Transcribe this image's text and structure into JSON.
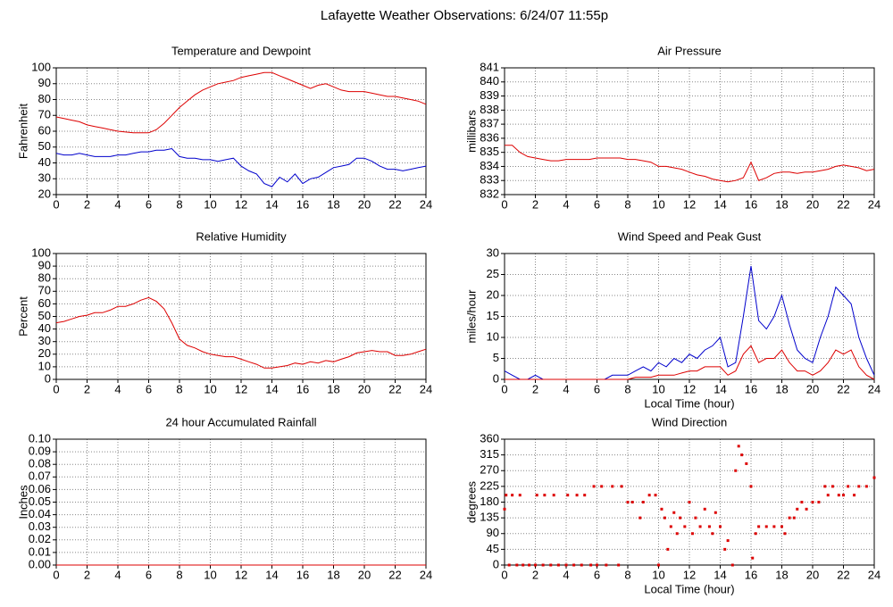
{
  "title": "Lafayette Weather Observations: 6/24/07 11:55p",
  "chart_data": [
    {
      "type": "line",
      "title": "Temperature and Dewpoint",
      "ylabel": "Fahrenheit",
      "x": [
        0,
        0.5,
        1,
        1.5,
        2,
        2.5,
        3,
        3.5,
        4,
        4.5,
        5,
        5.5,
        6,
        6.5,
        7,
        7.5,
        8,
        8.5,
        9,
        9.5,
        10,
        10.5,
        11,
        11.5,
        12,
        12.5,
        13,
        13.5,
        14,
        14.5,
        15,
        15.5,
        16,
        16.5,
        17,
        17.5,
        18,
        18.5,
        19,
        19.5,
        20,
        20.5,
        21,
        21.5,
        22,
        22.5,
        23,
        23.5,
        24
      ],
      "series": [
        {
          "color": "#dd0000",
          "values": [
            69,
            68,
            67,
            66,
            64,
            63,
            62,
            61,
            60,
            59.5,
            59,
            59,
            59,
            61,
            65,
            70,
            75,
            79,
            83,
            86,
            88,
            90,
            91,
            92,
            94,
            95,
            96,
            97,
            97,
            95,
            93,
            91,
            89,
            87,
            89,
            90,
            88,
            86,
            85,
            85,
            85,
            84,
            83,
            82,
            82,
            81,
            80,
            79,
            77
          ]
        },
        {
          "color": "#0000cc",
          "values": [
            46,
            45,
            45,
            46,
            45,
            44,
            44,
            44,
            45,
            45,
            46,
            47,
            47,
            48,
            48,
            49,
            44,
            43,
            43,
            42,
            42,
            41,
            42,
            43,
            38,
            35,
            33,
            27,
            25,
            31,
            28,
            33,
            27,
            30,
            31,
            34,
            37,
            38,
            39,
            43,
            43,
            41,
            38,
            36,
            36,
            35,
            36,
            37,
            38
          ]
        }
      ],
      "xlim": [
        0,
        24
      ],
      "xticks": [
        0,
        2,
        4,
        6,
        8,
        10,
        12,
        14,
        16,
        18,
        20,
        22,
        24
      ],
      "ylim": [
        20,
        100
      ],
      "yticks": [
        20,
        30,
        40,
        50,
        60,
        70,
        80,
        90,
        100
      ],
      "grid": true
    },
    {
      "type": "line",
      "title": "Air Pressure",
      "ylabel": "millibars",
      "x": [
        0,
        0.5,
        1,
        1.5,
        2,
        2.5,
        3,
        3.5,
        4,
        4.5,
        5,
        5.5,
        6,
        6.5,
        7,
        7.5,
        8,
        8.5,
        9,
        9.5,
        10,
        10.5,
        11,
        11.5,
        12,
        12.5,
        13,
        13.5,
        14,
        14.5,
        15,
        15.5,
        16,
        16.5,
        17,
        17.5,
        18,
        18.5,
        19,
        19.5,
        20,
        20.5,
        21,
        21.5,
        22,
        22.5,
        23,
        23.5,
        24
      ],
      "series": [
        {
          "color": "#dd0000",
          "values": [
            835.5,
            835.5,
            835.0,
            834.7,
            834.6,
            834.5,
            834.4,
            834.4,
            834.5,
            834.5,
            834.5,
            834.5,
            834.6,
            834.6,
            834.6,
            834.6,
            834.5,
            834.5,
            834.4,
            834.3,
            834.0,
            834.0,
            833.9,
            833.8,
            833.6,
            833.4,
            833.3,
            833.1,
            833.0,
            832.9,
            833.0,
            833.2,
            834.3,
            833.0,
            833.2,
            833.5,
            833.6,
            833.6,
            833.5,
            833.6,
            833.6,
            833.7,
            833.8,
            834.0,
            834.1,
            834.0,
            833.9,
            833.7,
            833.8
          ]
        }
      ],
      "xlim": [
        0,
        24
      ],
      "xticks": [
        0,
        2,
        4,
        6,
        8,
        10,
        12,
        14,
        16,
        18,
        20,
        22,
        24
      ],
      "ylim": [
        832,
        841
      ],
      "yticks": [
        832,
        833,
        834,
        835,
        836,
        837,
        838,
        839,
        840,
        841
      ],
      "grid": true
    },
    {
      "type": "line",
      "title": "Relative Humidity",
      "ylabel": "Percent",
      "x": [
        0,
        0.5,
        1,
        1.5,
        2,
        2.5,
        3,
        3.5,
        4,
        4.5,
        5,
        5.5,
        6,
        6.5,
        7,
        7.5,
        8,
        8.5,
        9,
        9.5,
        10,
        10.5,
        11,
        11.5,
        12,
        12.5,
        13,
        13.5,
        14,
        14.5,
        15,
        15.5,
        16,
        16.5,
        17,
        17.5,
        18,
        18.5,
        19,
        19.5,
        20,
        20.5,
        21,
        21.5,
        22,
        22.5,
        23,
        23.5,
        24
      ],
      "series": [
        {
          "color": "#dd0000",
          "values": [
            45,
            46,
            48,
            50,
            51,
            53,
            53,
            55,
            58,
            58,
            60,
            63,
            65,
            62,
            56,
            45,
            32,
            27,
            25,
            22,
            20,
            19,
            18,
            18,
            16,
            14,
            12,
            9,
            9,
            10,
            11,
            13,
            12,
            14,
            13,
            15,
            14,
            16,
            18,
            21,
            22,
            23,
            22,
            22,
            19,
            19,
            20,
            22,
            24
          ]
        }
      ],
      "xlim": [
        0,
        24
      ],
      "xticks": [
        0,
        2,
        4,
        6,
        8,
        10,
        12,
        14,
        16,
        18,
        20,
        22,
        24
      ],
      "ylim": [
        0,
        100
      ],
      "yticks": [
        0,
        10,
        20,
        30,
        40,
        50,
        60,
        70,
        80,
        90,
        100
      ],
      "grid": true
    },
    {
      "type": "line",
      "title": "Wind Speed and Peak Gust",
      "ylabel": "miles/hour",
      "xlabel": "Local Time (hour)",
      "x": [
        0,
        0.5,
        1,
        1.5,
        2,
        2.5,
        3,
        3.5,
        4,
        4.5,
        5,
        5.5,
        6,
        6.5,
        7,
        7.5,
        8,
        8.5,
        9,
        9.5,
        10,
        10.5,
        11,
        11.5,
        12,
        12.5,
        13,
        13.5,
        14,
        14.5,
        15,
        15.5,
        16,
        16.5,
        17,
        17.5,
        18,
        18.5,
        19,
        19.5,
        20,
        20.5,
        21,
        21.5,
        22,
        22.5,
        23,
        23.5,
        24
      ],
      "series": [
        {
          "color": "#0000cc",
          "values": [
            2,
            1,
            0,
            0,
            1,
            0,
            0,
            0,
            0,
            0,
            0,
            0,
            0,
            0,
            1,
            1,
            1,
            2,
            3,
            2,
            4,
            3,
            5,
            4,
            6,
            5,
            7,
            8,
            10,
            3,
            4,
            15,
            27,
            14,
            12,
            15,
            20,
            13,
            7,
            5,
            4,
            10,
            15,
            22,
            20,
            18,
            10,
            5,
            1
          ]
        },
        {
          "color": "#dd0000",
          "values": [
            0,
            0,
            0,
            0,
            0,
            0,
            0,
            0,
            0,
            0,
            0,
            0,
            0,
            0,
            0,
            0,
            0,
            0.5,
            0.5,
            0.5,
            1,
            1,
            1,
            1.5,
            2,
            2,
            3,
            3,
            3,
            1,
            2,
            6,
            8,
            4,
            5,
            5,
            7,
            4,
            2,
            2,
            1,
            2,
            4,
            7,
            6,
            7,
            3,
            1,
            0
          ]
        }
      ],
      "xlim": [
        0,
        24
      ],
      "xticks": [
        0,
        2,
        4,
        6,
        8,
        10,
        12,
        14,
        16,
        18,
        20,
        22,
        24
      ],
      "ylim": [
        0,
        30
      ],
      "yticks": [
        0,
        5,
        10,
        15,
        20,
        25,
        30
      ],
      "grid": true
    },
    {
      "type": "line",
      "title": "24 hour Accumulated Rainfall",
      "ylabel": "Inches",
      "x": [
        0,
        24
      ],
      "series": [
        {
          "color": "#dd0000",
          "values": [
            0,
            0
          ]
        }
      ],
      "xlim": [
        0,
        24
      ],
      "xticks": [
        0,
        2,
        4,
        6,
        8,
        10,
        12,
        14,
        16,
        18,
        20,
        22,
        24
      ],
      "ylim": [
        0,
        0.1
      ],
      "yticks": [
        {
          "value": 0,
          "label": "0.00"
        },
        {
          "value": 0.01,
          "label": "0.01"
        },
        {
          "value": 0.02,
          "label": "0.02"
        },
        {
          "value": 0.03,
          "label": "0.03"
        },
        {
          "value": 0.04,
          "label": "0.04"
        },
        {
          "value": 0.05,
          "label": "0.05"
        },
        {
          "value": 0.06,
          "label": "0.06"
        },
        {
          "value": 0.07,
          "label": "0.07"
        },
        {
          "value": 0.08,
          "label": "0.08"
        },
        {
          "value": 0.09,
          "label": "0.09"
        },
        {
          "value": 0.1,
          "label": "0.10"
        }
      ],
      "grid": true
    },
    {
      "type": "scatter",
      "title": "Wind Direction",
      "ylabel": "degrees",
      "xlabel": "Local Time (hour)",
      "x": [
        0,
        0.1,
        0.5,
        1,
        0.3,
        0.8,
        1.2,
        1.6,
        2,
        2.1,
        2.5,
        2.6,
        3,
        3.2,
        3.5,
        4,
        4.1,
        4.5,
        4.7,
        5,
        5.2,
        5.6,
        5.8,
        6,
        6.3,
        6.6,
        7,
        7.4,
        7.6,
        8,
        8.3,
        8.8,
        9,
        9.4,
        9.8,
        10,
        10.2,
        10.4,
        10.6,
        10.8,
        11,
        11.2,
        11.4,
        11.7,
        12,
        12.2,
        12.4,
        12.7,
        13,
        13.3,
        13.5,
        13.7,
        14,
        14.3,
        14.5,
        14.8,
        15,
        15.2,
        15.4,
        15.7,
        16,
        16.1,
        16.3,
        16.5,
        17,
        17.5,
        18,
        18.2,
        18.5,
        18.8,
        19,
        19.3,
        19.6,
        20,
        20.4,
        20.8,
        21,
        21.3,
        21.7,
        22,
        22.3,
        22.7,
        23,
        23.5,
        24
      ],
      "series": [
        {
          "color": "#dd0000",
          "values": [
            160,
            200,
            200,
            200,
            0,
            0,
            0,
            0,
            0,
            200,
            0,
            200,
            0,
            200,
            0,
            0,
            200,
            0,
            200,
            0,
            200,
            0,
            225,
            0,
            225,
            0,
            225,
            0,
            225,
            180,
            180,
            135,
            180,
            200,
            200,
            0,
            160,
            135,
            45,
            110,
            150,
            90,
            135,
            110,
            180,
            90,
            135,
            110,
            160,
            110,
            90,
            150,
            110,
            45,
            70,
            0,
            270,
            340,
            315,
            290,
            225,
            20,
            90,
            110,
            110,
            110,
            110,
            90,
            135,
            135,
            160,
            180,
            160,
            180,
            180,
            225,
            200,
            225,
            200,
            200,
            225,
            200,
            225,
            225,
            250
          ]
        }
      ],
      "xlim": [
        0,
        24
      ],
      "xticks": [
        0,
        2,
        4,
        6,
        8,
        10,
        12,
        14,
        16,
        18,
        20,
        22,
        24
      ],
      "ylim": [
        0,
        360
      ],
      "yticks": [
        0,
        45,
        90,
        135,
        180,
        225,
        270,
        315,
        360
      ],
      "grid": true
    }
  ]
}
